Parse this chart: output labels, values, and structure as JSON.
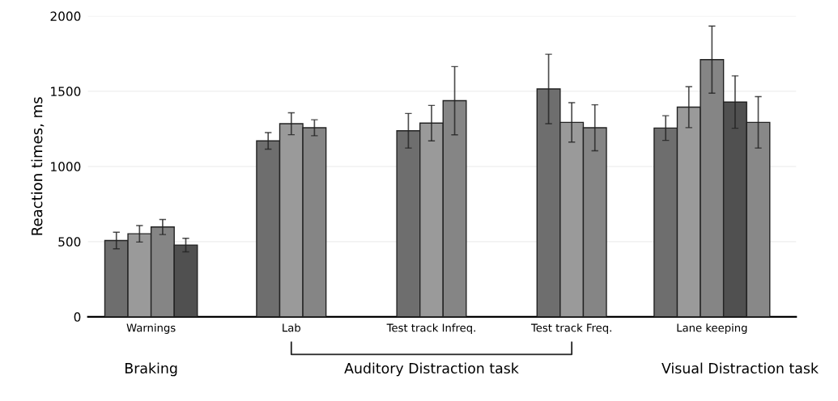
{
  "chart_data": {
    "type": "bar",
    "ylabel": "Reaction times, ms",
    "categories": [
      "Warnings",
      "Lab",
      "Test track Infreq.",
      "Test track Freq.",
      "Lane keeping"
    ],
    "series": [
      {
        "color": "#6e6e6e",
        "values": [
          507,
          1170,
          1237,
          1515,
          1255
        ],
        "errors": [
          55,
          55,
          115,
          231,
          82
        ]
      },
      {
        "color": "#9a9a9a",
        "values": [
          552,
          1284,
          1288,
          1293,
          1394
        ],
        "errors": [
          55,
          73,
          118,
          131,
          136
        ]
      },
      {
        "color": "#858585",
        "values": [
          597,
          1257,
          1437,
          1257,
          1710
        ],
        "errors": [
          50,
          53,
          227,
          153,
          223
        ]
      },
      {
        "color": "#505050",
        "values": [
          477,
          null,
          null,
          null,
          1428
        ],
        "errors": [
          45,
          null,
          null,
          null,
          174
        ]
      },
      {
        "color": "#888888",
        "values": [
          null,
          null,
          null,
          null,
          1293
        ],
        "errors": [
          null,
          null,
          null,
          null,
          171
        ]
      }
    ],
    "ylim": [
      0,
      2000
    ],
    "yticks": [
      0,
      500,
      1000,
      1500,
      2000
    ],
    "grid": "y",
    "annotations": [
      "Braking",
      "Auditory Distraction task",
      "Visual Distraction task"
    ]
  }
}
